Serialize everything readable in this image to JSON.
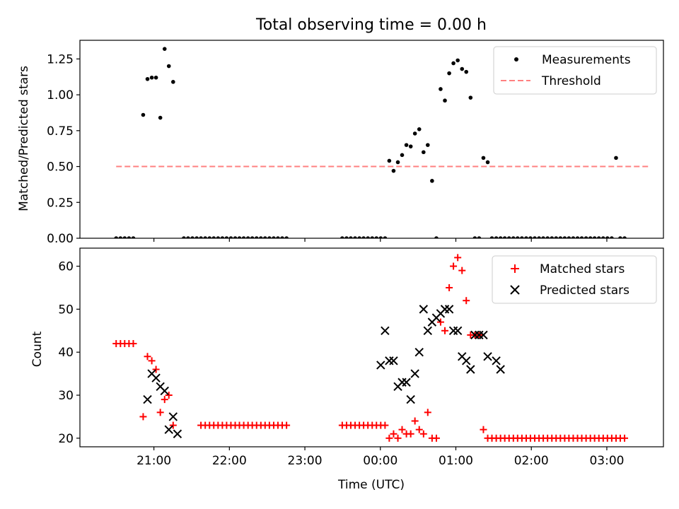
{
  "chart_data": [
    {
      "type": "scatter",
      "title": "Total observing time = 0.00 h",
      "xlabel": "",
      "ylabel": "Matched/Predicted stars",
      "xlim": [
        -0.48,
        7.25
      ],
      "ylim": [
        0,
        1.38
      ],
      "yticks": [
        0.0,
        0.25,
        0.5,
        0.75,
        1.0,
        1.25
      ],
      "ytick_labels": [
        "0.00",
        "0.25",
        "0.50",
        "0.75",
        "1.00",
        "1.25"
      ],
      "legend_position": "top-right",
      "series": [
        {
          "name": "Measurements",
          "marker": "dot",
          "color": "#000000",
          "x": [
            0.0,
            0.057,
            0.113,
            0.17,
            0.227,
            0.358,
            0.415,
            0.472,
            0.528,
            0.585,
            0.642,
            0.698,
            0.755,
            0.897,
            0.953,
            1.01,
            1.067,
            1.123,
            1.18,
            1.237,
            1.293,
            1.35,
            1.407,
            1.463,
            1.52,
            1.577,
            1.633,
            1.69,
            1.747,
            1.803,
            1.86,
            1.917,
            1.973,
            2.03,
            2.087,
            2.143,
            2.2,
            2.257,
            2.995,
            3.052,
            3.108,
            3.165,
            3.222,
            3.278,
            3.335,
            3.392,
            3.448,
            3.505,
            3.562,
            3.618,
            3.675,
            3.732,
            3.788,
            3.845,
            3.902,
            3.958,
            4.015,
            4.072,
            4.128,
            4.185,
            4.242,
            4.298,
            4.355,
            4.412,
            4.468,
            4.525,
            4.582,
            4.638,
            4.695,
            4.752,
            4.808,
            4.865,
            4.922,
            4.978,
            5.035,
            5.092,
            5.148,
            5.205,
            5.262,
            5.318,
            5.375,
            5.432,
            5.488,
            5.545,
            5.602,
            5.658,
            5.715,
            5.772,
            5.828,
            5.885,
            5.942,
            5.998,
            6.055,
            6.112,
            6.168,
            6.225,
            6.282,
            6.338,
            6.395,
            6.452,
            6.508,
            6.565,
            6.622,
            6.678,
            6.735
          ],
          "y": [
            0,
            0,
            0,
            0,
            0,
            0.86,
            1.11,
            1.12,
            1.12,
            0.84,
            1.32,
            1.2,
            1.09,
            0,
            0,
            0,
            0,
            0,
            0,
            0,
            0,
            0,
            0,
            0,
            0,
            0,
            0,
            0,
            0,
            0,
            0,
            0,
            0,
            0,
            0,
            0,
            0,
            0,
            0,
            0,
            0,
            0,
            0,
            0,
            0,
            0,
            0,
            0,
            0,
            0.54,
            0.47,
            0.53,
            0.58,
            0.65,
            0.64,
            0.73,
            0.76,
            0.6,
            0.65,
            0.4,
            0,
            1.04,
            0.96,
            1.15,
            1.22,
            1.24,
            1.18,
            1.16,
            0.98,
            0,
            0,
            0.56,
            0.53,
            0,
            0,
            0,
            0,
            0,
            0,
            0,
            0,
            0,
            0,
            0,
            0,
            0,
            0,
            0,
            0,
            0,
            0,
            0,
            0,
            0,
            0,
            0,
            0,
            0,
            0,
            0,
            0,
            0,
            0.56,
            0,
            0
          ]
        },
        {
          "name": "Threshold",
          "marker": "dashed-line",
          "color": "#ff8080",
          "x": [
            0.0,
            7.05
          ],
          "y": [
            0.5,
            0.5
          ]
        }
      ]
    },
    {
      "type": "scatter",
      "title": "",
      "xlabel": "Time (UTC)",
      "ylabel": "Count",
      "xlim": [
        -0.48,
        7.25
      ],
      "ylim": [
        18,
        64.2
      ],
      "yticks": [
        20,
        30,
        40,
        50,
        60
      ],
      "ytick_labels": [
        "20",
        "30",
        "40",
        "50",
        "60"
      ],
      "xticks": [
        0.5,
        1.5,
        2.5,
        3.5,
        4.5,
        5.5,
        6.5
      ],
      "xtick_labels": [
        "21:00",
        "22:00",
        "23:00",
        "00:00",
        "01:00",
        "02:00",
        "03:00"
      ],
      "legend_position": "top-right",
      "series": [
        {
          "name": "Matched stars",
          "marker": "plus",
          "color": "#ff0000",
          "x": [
            0.0,
            0.057,
            0.113,
            0.17,
            0.227,
            0.358,
            0.415,
            0.472,
            0.528,
            0.585,
            0.642,
            0.698,
            0.755,
            1.123,
            1.18,
            1.237,
            1.293,
            1.35,
            1.407,
            1.463,
            1.52,
            1.577,
            1.633,
            1.69,
            1.747,
            1.803,
            1.86,
            1.917,
            1.973,
            2.03,
            2.087,
            2.143,
            2.2,
            2.257,
            2.995,
            3.052,
            3.108,
            3.165,
            3.222,
            3.278,
            3.335,
            3.392,
            3.448,
            3.505,
            3.562,
            3.618,
            3.675,
            3.732,
            3.788,
            3.845,
            3.902,
            3.958,
            4.015,
            4.072,
            4.128,
            4.185,
            4.242,
            4.298,
            4.355,
            4.412,
            4.468,
            4.525,
            4.582,
            4.638,
            4.695,
            4.752,
            4.808,
            4.865,
            4.922,
            4.978,
            5.035,
            5.092,
            5.148,
            5.205,
            5.262,
            5.318,
            5.375,
            5.432,
            5.488,
            5.545,
            5.602,
            5.658,
            5.715,
            5.772,
            5.828,
            5.885,
            5.942,
            5.998,
            6.055,
            6.112,
            6.168,
            6.225,
            6.282,
            6.338,
            6.395,
            6.452,
            6.508,
            6.565,
            6.622,
            6.678,
            6.735
          ],
          "y": [
            42,
            42,
            42,
            42,
            42,
            25,
            39,
            38,
            36,
            26,
            29,
            30,
            23,
            23,
            23,
            23,
            23,
            23,
            23,
            23,
            23,
            23,
            23,
            23,
            23,
            23,
            23,
            23,
            23,
            23,
            23,
            23,
            23,
            23,
            23,
            23,
            23,
            23,
            23,
            23,
            23,
            23,
            23,
            23,
            23,
            20,
            21,
            20,
            22,
            21,
            21,
            24,
            22,
            21,
            26,
            20,
            20,
            47,
            45,
            55,
            60,
            62,
            59,
            52,
            44,
            44,
            44,
            22,
            20,
            20,
            20,
            20,
            20,
            20,
            20,
            20,
            20,
            20,
            20,
            20,
            20,
            20,
            20,
            20,
            20,
            20,
            20,
            20,
            20,
            20,
            20,
            20,
            20,
            20,
            20,
            20,
            20,
            20,
            20,
            20,
            20
          ]
        },
        {
          "name": "Predicted stars",
          "marker": "x",
          "color": "#000000",
          "x": [
            0.415,
            0.472,
            0.528,
            0.585,
            0.642,
            0.698,
            0.755,
            0.812,
            3.505,
            3.562,
            3.618,
            3.675,
            3.732,
            3.788,
            3.845,
            3.902,
            3.958,
            4.015,
            4.072,
            4.128,
            4.185,
            4.242,
            4.298,
            4.355,
            4.412,
            4.468,
            4.525,
            4.582,
            4.638,
            4.695,
            4.752,
            4.808,
            4.865,
            4.922,
            5.035,
            5.092
          ],
          "y": [
            29,
            35,
            34,
            32,
            31,
            22,
            25,
            21,
            37,
            45,
            38,
            38,
            32,
            33,
            33,
            29,
            35,
            40,
            50,
            45,
            47,
            48,
            49,
            50,
            50,
            45,
            45,
            39,
            38,
            36,
            44,
            44,
            44,
            39,
            38,
            36
          ]
        }
      ]
    }
  ]
}
